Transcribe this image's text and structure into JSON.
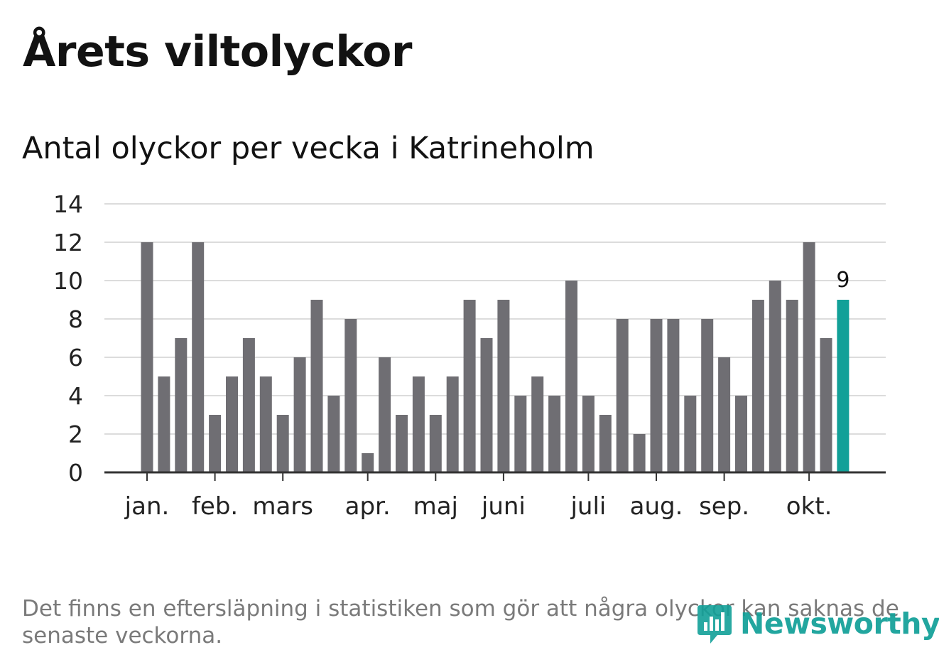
{
  "title": "Årets viltolyckor",
  "subtitle": "Antal olyckor per vecka i Katrineholm",
  "footnote": "Det finns en eftersläpning i statistiken som gör att några olyckor kan saknas de senaste veckorna.",
  "logo_text": "Newsworthy",
  "colors": {
    "bar": "#6f6e73",
    "highlight": "#12a098",
    "grid": "#dcdcdc",
    "axis": "#333333",
    "text": "#222222"
  },
  "chart_data": {
    "type": "bar",
    "title": "Antal olyckor per vecka i Katrineholm",
    "xlabel": "",
    "ylabel": "",
    "ylim": [
      0,
      14
    ],
    "yticks": [
      0,
      2,
      4,
      6,
      8,
      10,
      12,
      14
    ],
    "grid": true,
    "weeks": [
      1,
      2,
      3,
      4,
      5,
      6,
      7,
      8,
      9,
      10,
      11,
      12,
      13,
      14,
      15,
      16,
      17,
      18,
      19,
      20,
      21,
      22,
      23,
      24,
      25,
      26,
      27,
      28,
      29,
      30,
      31,
      32,
      33,
      34,
      35,
      36,
      37,
      38,
      39,
      40,
      41,
      42
    ],
    "values": [
      12,
      5,
      7,
      12,
      3,
      5,
      7,
      5,
      3,
      6,
      9,
      4,
      8,
      1,
      6,
      3,
      5,
      3,
      5,
      9,
      7,
      9,
      4,
      5,
      4,
      10,
      4,
      3,
      8,
      2,
      8,
      8,
      4,
      8,
      6,
      4,
      9,
      10,
      9,
      12,
      7,
      9
    ],
    "highlight_index": 41,
    "highlight_label": "9",
    "month_labels": [
      {
        "label": "jan.",
        "week": 1
      },
      {
        "label": "feb.",
        "week": 5
      },
      {
        "label": "mars",
        "week": 9
      },
      {
        "label": "apr.",
        "week": 14
      },
      {
        "label": "maj",
        "week": 18
      },
      {
        "label": "juni",
        "week": 22
      },
      {
        "label": "juli",
        "week": 27
      },
      {
        "label": "aug.",
        "week": 31
      },
      {
        "label": "sep.",
        "week": 35
      },
      {
        "label": "okt.",
        "week": 40
      }
    ]
  }
}
